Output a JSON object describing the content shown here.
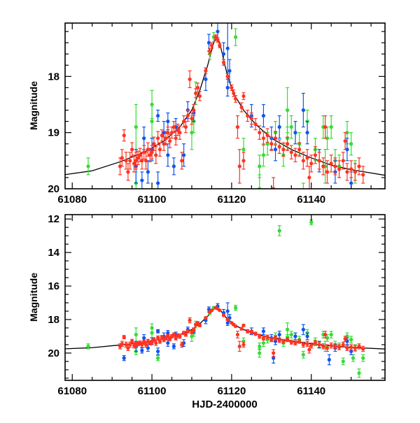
{
  "chart_data": [
    {
      "type": "scatter",
      "panel": "top",
      "xlabel": "",
      "ylabel": "Magnitude",
      "xlim": [
        61078.2,
        61158.5
      ],
      "ylim": [
        20.0,
        17.05
      ],
      "y_inverted": true,
      "xticks": [
        61080,
        61100,
        61120,
        61140
      ],
      "xtick_labels": [
        "61080",
        "61100",
        "61120",
        "61140"
      ],
      "yticks": [
        18,
        19,
        20
      ],
      "ytick_labels": [
        "18",
        "19",
        "20"
      ],
      "grid": false,
      "legend": "none"
    },
    {
      "type": "scatter",
      "panel": "bottom",
      "xlabel": "HJD-2400000",
      "ylabel": "Magnitude",
      "xlim": [
        61078.2,
        61158.5
      ],
      "ylim": [
        21.63,
        11.74
      ],
      "y_inverted": true,
      "xticks": [
        61080,
        61100,
        61120,
        61140
      ],
      "xtick_labels": [
        "61080",
        "61100",
        "61120",
        "61140"
      ],
      "yticks": [
        12,
        14,
        16,
        18,
        20
      ],
      "ytick_labels": [
        "12",
        "14",
        "16",
        "18",
        "20"
      ],
      "grid": false,
      "legend": "none"
    }
  ],
  "model_curve": {
    "color": "#000000",
    "points": [
      [
        61078,
        19.75
      ],
      [
        61085,
        19.68
      ],
      [
        61092,
        19.52
      ],
      [
        61098,
        19.35
      ],
      [
        61103,
        19.15
      ],
      [
        61107,
        18.9
      ],
      [
        61110,
        18.6
      ],
      [
        61112,
        18.25
      ],
      [
        61114,
        17.8
      ],
      [
        61115.5,
        17.4
      ],
      [
        61116.3,
        17.3
      ],
      [
        61117,
        17.4
      ],
      [
        61118,
        17.7
      ],
      [
        61119,
        18.0
      ],
      [
        61120.5,
        18.3
      ],
      [
        61123,
        18.6
      ],
      [
        61126,
        18.85
      ],
      [
        61130,
        19.1
      ],
      [
        61135,
        19.3
      ],
      [
        61140,
        19.45
      ],
      [
        61145,
        19.58
      ],
      [
        61150,
        19.66
      ],
      [
        61158.5,
        19.76
      ]
    ]
  },
  "series": [
    {
      "name": "green",
      "color": "#33dd33",
      "points": [
        [
          61084,
          19.6,
          0.15
        ],
        [
          61096,
          18.9,
          0.4
        ],
        [
          61096,
          19.9,
          0.2
        ],
        [
          61100,
          18.5,
          0.25
        ],
        [
          61100,
          18.8,
          0.3
        ],
        [
          61101.5,
          20.3,
          0.15
        ],
        [
          61110,
          19.0,
          0.3
        ],
        [
          61110.5,
          18.8,
          0.2
        ],
        [
          61111,
          18.3,
          0.2
        ],
        [
          61114.5,
          17.6,
          0.1
        ],
        [
          61115.5,
          17.3,
          0.08
        ],
        [
          61121,
          17.3,
          0.15
        ],
        [
          61123,
          19.3,
          0.2
        ],
        [
          61127,
          19.6,
          0.2
        ],
        [
          61127,
          20.0,
          0.25
        ],
        [
          61128,
          19.4,
          0.2
        ],
        [
          61129,
          19.2,
          0.2
        ],
        [
          61131,
          19.0,
          0.2
        ],
        [
          61132,
          12.7,
          0.3
        ],
        [
          61133,
          19.4,
          0.2
        ],
        [
          61134,
          18.6,
          0.4
        ],
        [
          61134,
          19.1,
          0.2
        ],
        [
          61135,
          18.9,
          0.2
        ],
        [
          61136,
          19.0,
          0.2
        ],
        [
          61137,
          19.2,
          0.2
        ],
        [
          61138,
          20.1,
          0.2
        ],
        [
          61139,
          18.8,
          0.2
        ],
        [
          61140,
          12.2,
          0.15
        ],
        [
          61141,
          19.3,
          0.2
        ],
        [
          61142,
          19.5,
          0.2
        ],
        [
          61143,
          18.9,
          0.2
        ],
        [
          61143.5,
          19.6,
          0.3
        ],
        [
          61144,
          19.1,
          0.2
        ],
        [
          61145,
          18.9,
          0.2
        ],
        [
          61146,
          19.5,
          0.2
        ],
        [
          61147,
          19.6,
          0.2
        ],
        [
          61148,
          20.5,
          0.2
        ],
        [
          61149,
          19.0,
          0.2
        ],
        [
          61150,
          19.2,
          0.2
        ],
        [
          61150.5,
          20.3,
          0.2
        ],
        [
          61151,
          19.7,
          0.2
        ],
        [
          61152,
          21.2,
          0.25
        ],
        [
          61153,
          20.3,
          0.2
        ]
      ]
    },
    {
      "name": "blue",
      "color": "#1155ee",
      "points": [
        [
          61093,
          20.3,
          0.15
        ],
        [
          61096,
          19.6,
          0.3
        ],
        [
          61097.5,
          19.85,
          0.15
        ],
        [
          61098,
          19.1,
          0.2
        ],
        [
          61099,
          19.7,
          0.2
        ],
        [
          61100,
          19.3,
          0.2
        ],
        [
          61101.5,
          18.7,
          0.1
        ],
        [
          61101.5,
          19.9,
          0.2
        ],
        [
          61103,
          19.0,
          0.2
        ],
        [
          61104,
          18.8,
          0.15
        ],
        [
          61104,
          19.4,
          0.2
        ],
        [
          61105.5,
          19.6,
          0.15
        ],
        [
          61106,
          18.9,
          0.15
        ],
        [
          61108,
          19.4,
          0.2
        ],
        [
          61109,
          18.6,
          0.15
        ],
        [
          61110.5,
          18.65,
          0.15
        ],
        [
          61113.5,
          18.05,
          0.2
        ],
        [
          61114.3,
          17.4,
          0.15
        ],
        [
          61116.5,
          17.2,
          0.15
        ],
        [
          61118,
          17.6,
          0.2
        ],
        [
          61119,
          17.5,
          0.5
        ],
        [
          61119.5,
          17.9,
          0.2
        ],
        [
          61119,
          18.2,
          0.15
        ],
        [
          61125,
          18.7,
          0.2
        ],
        [
          61128,
          18.7,
          0.2
        ],
        [
          61130,
          19.1,
          0.2
        ],
        [
          61130.5,
          20.3,
          0.3
        ],
        [
          61131,
          19.3,
          0.2
        ],
        [
          61132,
          18.9,
          0.2
        ],
        [
          61136,
          19.0,
          0.2
        ],
        [
          61138,
          18.6,
          0.3
        ],
        [
          61139,
          19.0,
          0.2
        ],
        [
          61142,
          19.5,
          0.2
        ],
        [
          61144.5,
          20.4,
          0.3
        ],
        [
          61146,
          19.7,
          0.2
        ],
        [
          61149,
          19.3,
          0.2
        ],
        [
          61150,
          19.9,
          0.2
        ]
      ]
    },
    {
      "name": "red",
      "color": "#ff3322",
      "points": [
        [
          61092,
          19.6,
          0.15
        ],
        [
          61092.5,
          19.45,
          0.15
        ],
        [
          61093,
          19.05,
          0.1
        ],
        [
          61093.5,
          19.5,
          0.15
        ],
        [
          61094,
          19.7,
          0.15
        ],
        [
          61094.5,
          19.5,
          0.15
        ],
        [
          61095,
          19.3,
          0.12
        ],
        [
          61095.5,
          19.55,
          0.15
        ],
        [
          61096,
          19.5,
          0.15
        ],
        [
          61096.5,
          19.45,
          0.12
        ],
        [
          61097,
          19.4,
          0.12
        ],
        [
          61097.5,
          19.5,
          0.15
        ],
        [
          61098,
          19.35,
          0.12
        ],
        [
          61098.5,
          19.5,
          0.15
        ],
        [
          61099,
          19.3,
          0.12
        ],
        [
          61099.5,
          19.4,
          0.12
        ],
        [
          61100,
          19.35,
          0.12
        ],
        [
          61100.5,
          19.2,
          0.12
        ],
        [
          61101,
          19.4,
          0.15
        ],
        [
          61101.5,
          19.1,
          0.12
        ],
        [
          61102,
          19.3,
          0.12
        ],
        [
          61102.5,
          19.05,
          0.1
        ],
        [
          61103,
          19.2,
          0.12
        ],
        [
          61103.5,
          19.1,
          0.12
        ],
        [
          61104,
          19.0,
          0.1
        ],
        [
          61104.5,
          19.15,
          0.12
        ],
        [
          61105,
          19.0,
          0.1
        ],
        [
          61105.5,
          18.9,
          0.1
        ],
        [
          61106,
          19.1,
          0.12
        ],
        [
          61106.5,
          18.95,
          0.1
        ],
        [
          61107,
          19.0,
          0.12
        ],
        [
          61107.5,
          19.5,
          0.15
        ],
        [
          61108,
          18.8,
          0.1
        ],
        [
          61108.5,
          18.9,
          0.1
        ],
        [
          61109,
          18.7,
          0.1
        ],
        [
          61109.5,
          18.05,
          0.15
        ],
        [
          61110,
          18.75,
          0.1
        ],
        [
          61110.5,
          18.6,
          0.1
        ],
        [
          61111,
          18.3,
          0.08
        ],
        [
          61111.5,
          18.2,
          0.08
        ],
        [
          61112,
          18.35,
          0.08
        ],
        [
          61113.5,
          17.9,
          0.05
        ],
        [
          61114.5,
          17.55,
          0.05
        ],
        [
          61115,
          17.45,
          0.05
        ],
        [
          61116,
          17.3,
          0.04
        ],
        [
          61116.5,
          17.35,
          0.04
        ],
        [
          61117,
          17.45,
          0.04
        ],
        [
          61118,
          17.75,
          0.05
        ],
        [
          61119,
          18.0,
          0.05
        ],
        [
          61120,
          18.2,
          0.05
        ],
        [
          61120.5,
          18.3,
          0.06
        ],
        [
          61121,
          18.4,
          0.06
        ],
        [
          61121.5,
          18.9,
          0.2
        ],
        [
          61122,
          19.6,
          0.3
        ],
        [
          61122.5,
          18.55,
          0.08
        ],
        [
          61123,
          18.35,
          0.06
        ],
        [
          61123,
          19.5,
          0.15
        ],
        [
          61124,
          18.7,
          0.1
        ],
        [
          61125,
          18.75,
          0.1
        ],
        [
          61126,
          18.85,
          0.1
        ],
        [
          61127,
          19.0,
          0.12
        ],
        [
          61128,
          19.1,
          0.12
        ],
        [
          61129,
          19.05,
          0.12
        ],
        [
          61130,
          19.2,
          0.12
        ],
        [
          61130.5,
          20.0,
          0.2
        ],
        [
          61131,
          19.1,
          0.12
        ],
        [
          61132,
          19.25,
          0.12
        ],
        [
          61133,
          19.3,
          0.12
        ],
        [
          61134,
          19.2,
          0.12
        ],
        [
          61135,
          19.35,
          0.12
        ],
        [
          61136,
          19.4,
          0.12
        ],
        [
          61137,
          19.3,
          0.12
        ],
        [
          61138,
          19.5,
          0.15
        ],
        [
          61139,
          19.45,
          0.15
        ],
        [
          61139.5,
          19.8,
          0.2
        ],
        [
          61140,
          19.55,
          0.15
        ],
        [
          61141,
          19.4,
          0.15
        ],
        [
          61142,
          19.5,
          0.15
        ],
        [
          61143,
          19.6,
          0.15
        ],
        [
          61143.5,
          18.9,
          0.2
        ],
        [
          61144,
          19.7,
          0.2
        ],
        [
          61145,
          19.55,
          0.15
        ],
        [
          61146,
          19.6,
          0.15
        ],
        [
          61147,
          19.65,
          0.15
        ],
        [
          61148,
          19.5,
          0.15
        ],
        [
          61148.5,
          19.15,
          0.15
        ],
        [
          61149,
          19.7,
          0.15
        ],
        [
          61150,
          19.65,
          0.15
        ],
        [
          61151,
          19.7,
          0.15
        ],
        [
          61152,
          19.6,
          0.15
        ],
        [
          61153,
          19.75,
          0.15
        ]
      ]
    }
  ]
}
